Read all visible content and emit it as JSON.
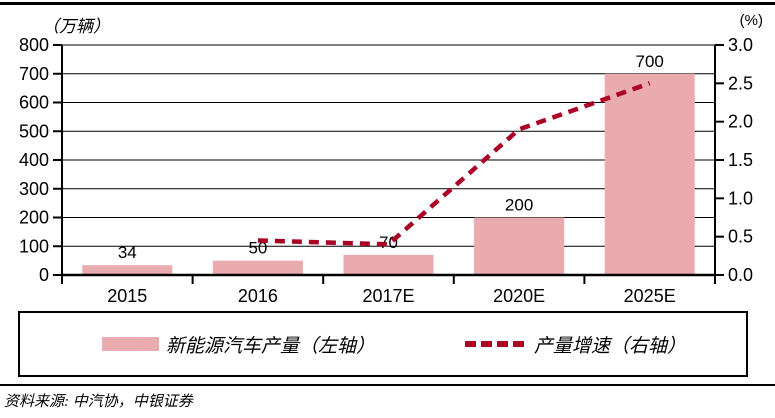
{
  "source_text": "资料来源: 中汽协，中银证券",
  "legend": {
    "bar_label": "新能源汽车产量（左轴）",
    "line_label": "产量增速（右轴）"
  },
  "colors": {
    "bar_fill": "#E9ABAD",
    "line": "#AA0224",
    "axis": "#000000",
    "background": "#FFFFFF"
  },
  "chart_data": {
    "type": "bar",
    "combo": "bar+line",
    "categories": [
      "2015",
      "2016",
      "2017E",
      "2020E",
      "2025E"
    ],
    "series": [
      {
        "name": "新能源汽车产量（左轴）",
        "type": "bar",
        "axis": "left",
        "values": [
          34,
          50,
          70,
          200,
          700
        ],
        "data_labels": [
          "34",
          "50",
          "70",
          "200",
          "700"
        ]
      },
      {
        "name": "产量增速（右轴）",
        "type": "line",
        "line_style": "dashed",
        "axis": "right",
        "values": [
          null,
          0.45,
          0.4,
          1.9,
          2.5
        ]
      }
    ],
    "left_axis": {
      "unit": "（万辆）",
      "min": 0,
      "max": 800,
      "tick_step": 100,
      "tick_labels": [
        "0",
        "100",
        "200",
        "300",
        "400",
        "500",
        "600",
        "700",
        "800"
      ]
    },
    "right_axis": {
      "unit": "(%)",
      "min": 0,
      "max": 3.0,
      "tick_step": 0.5,
      "tick_labels": [
        "0.0",
        "0.5",
        "1.0",
        "1.5",
        "2.0",
        "2.5",
        "3.0"
      ]
    },
    "grid": "horizontal",
    "legend_position": "bottom-box"
  }
}
